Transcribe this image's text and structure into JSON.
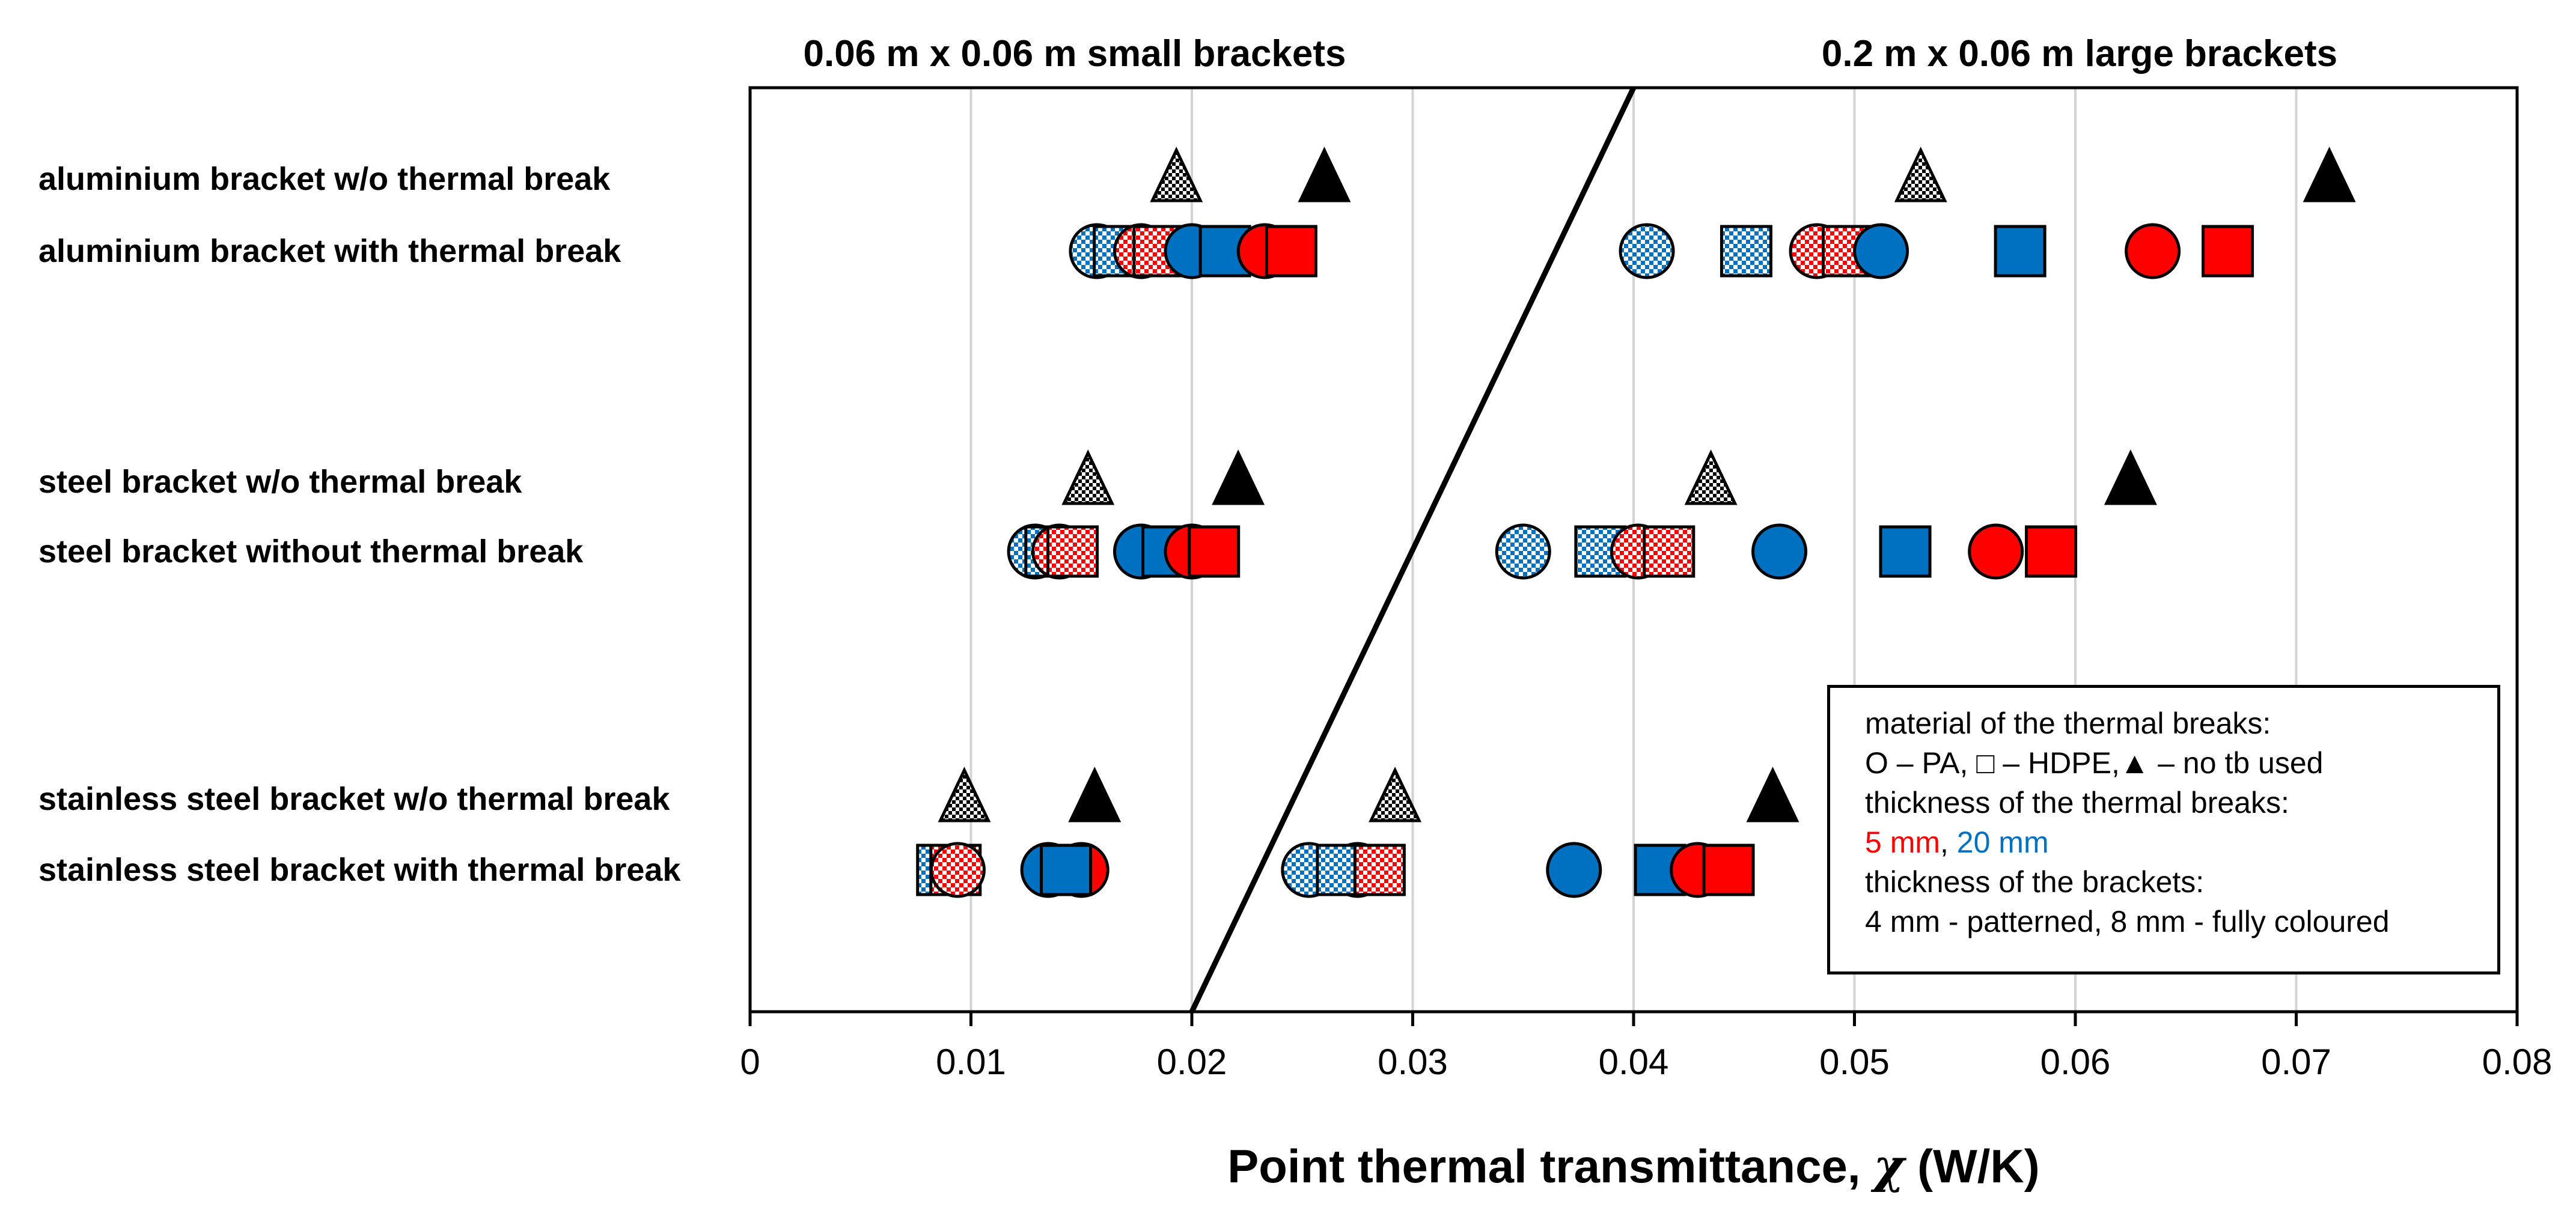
{
  "chart_data": {
    "type": "scatter",
    "title_left": "0.06 m x 0.06 m small brackets",
    "title_right": "0.2 m x 0.06 m large brackets",
    "xlabel": "Point thermal transmittance, χ (W/K)",
    "xlabel_main": "Point thermal transmittance, ",
    "xlabel_symbol": "χ",
    "xlabel_unit": " (W/K)",
    "xlim": [
      0,
      0.08
    ],
    "xticks": [
      0,
      0.01,
      0.02,
      0.03,
      0.04,
      0.05,
      0.06,
      0.07,
      0.08
    ],
    "xtick_labels": [
      "0",
      "0.01",
      "0.02",
      "0.03",
      "0.04",
      "0.05",
      "0.06",
      "0.07",
      "0.08"
    ],
    "grid": "vertical",
    "row_labels": [
      "aluminium bracket w/o thermal break",
      "aluminium bracket with thermal break",
      "steel bracket w/o thermal break",
      "steel bracket without thermal break",
      "stainless steel bracket w/o thermal break",
      "stainless steel bracket with thermal break"
    ],
    "divider_line": {
      "x_data": [
        0.02,
        0.04
      ],
      "from": "bottom",
      "to": "top"
    },
    "groups": [
      {
        "name": "aluminium",
        "no_break_row": 0,
        "break_row": 1,
        "no_break": [
          {
            "size": "small",
            "thickness": "4 mm",
            "value": 0.0193
          },
          {
            "size": "small",
            "thickness": "8 mm",
            "value": 0.026
          },
          {
            "size": "large",
            "thickness": "4 mm",
            "value": 0.053
          },
          {
            "size": "large",
            "thickness": "8 mm",
            "value": 0.0715
          }
        ],
        "with_break": [
          {
            "size": "small",
            "material": "PA",
            "tb": "20 mm",
            "thickness": "4 mm",
            "value": 0.0157
          },
          {
            "size": "small",
            "material": "HDPE",
            "tb": "20 mm",
            "thickness": "4 mm",
            "value": 0.0167
          },
          {
            "size": "small",
            "material": "PA",
            "tb": "5 mm",
            "thickness": "4 mm",
            "value": 0.0177
          },
          {
            "size": "small",
            "material": "HDPE",
            "tb": "5 mm",
            "thickness": "4 mm",
            "value": 0.0185
          },
          {
            "size": "small",
            "material": "PA",
            "tb": "20 mm",
            "thickness": "8 mm",
            "value": 0.02
          },
          {
            "size": "small",
            "material": "HDPE",
            "tb": "20 mm",
            "thickness": "8 mm",
            "value": 0.0215
          },
          {
            "size": "small",
            "material": "PA",
            "tb": "5 mm",
            "thickness": "8 mm",
            "value": 0.0233
          },
          {
            "size": "small",
            "material": "HDPE",
            "tb": "5 mm",
            "thickness": "8 mm",
            "value": 0.0245
          },
          {
            "size": "large",
            "material": "PA",
            "tb": "20 mm",
            "thickness": "4 mm",
            "value": 0.0406
          },
          {
            "size": "large",
            "material": "HDPE",
            "tb": "20 mm",
            "thickness": "4 mm",
            "value": 0.0451
          },
          {
            "size": "large",
            "material": "PA",
            "tb": "5 mm",
            "thickness": "4 mm",
            "value": 0.0483
          },
          {
            "size": "large",
            "material": "HDPE",
            "tb": "5 mm",
            "thickness": "4 mm",
            "value": 0.0497
          },
          {
            "size": "large",
            "material": "PA",
            "tb": "20 mm",
            "thickness": "8 mm",
            "value": 0.0512
          },
          {
            "size": "large",
            "material": "HDPE",
            "tb": "20 mm",
            "thickness": "8 mm",
            "value": 0.0575
          },
          {
            "size": "large",
            "material": "PA",
            "tb": "5 mm",
            "thickness": "8 mm",
            "value": 0.0635
          },
          {
            "size": "large",
            "material": "HDPE",
            "tb": "5 mm",
            "thickness": "8 mm",
            "value": 0.0669
          }
        ]
      },
      {
        "name": "steel",
        "no_break_row": 2,
        "break_row": 3,
        "no_break": [
          {
            "size": "small",
            "thickness": "4 mm",
            "value": 0.0153
          },
          {
            "size": "small",
            "thickness": "8 mm",
            "value": 0.0221
          },
          {
            "size": "large",
            "thickness": "4 mm",
            "value": 0.0435
          },
          {
            "size": "large",
            "thickness": "8 mm",
            "value": 0.0625
          }
        ],
        "with_break": [
          {
            "size": "small",
            "material": "PA",
            "tb": "20 mm",
            "thickness": "4 mm",
            "value": 0.0129
          },
          {
            "size": "small",
            "material": "HDPE",
            "tb": "20 mm",
            "thickness": "4 mm",
            "value": 0.0136
          },
          {
            "size": "small",
            "material": "PA",
            "tb": "5 mm",
            "thickness": "4 mm",
            "value": 0.014
          },
          {
            "size": "small",
            "material": "HDPE",
            "tb": "5 mm",
            "thickness": "4 mm",
            "value": 0.0146
          },
          {
            "size": "small",
            "material": "PA",
            "tb": "20 mm",
            "thickness": "8 mm",
            "value": 0.0177
          },
          {
            "size": "small",
            "material": "HDPE",
            "tb": "20 mm",
            "thickness": "8 mm",
            "value": 0.0189
          },
          {
            "size": "small",
            "material": "PA",
            "tb": "5 mm",
            "thickness": "8 mm",
            "value": 0.02
          },
          {
            "size": "small",
            "material": "HDPE",
            "tb": "5 mm",
            "thickness": "8 mm",
            "value": 0.021
          },
          {
            "size": "large",
            "material": "PA",
            "tb": "20 mm",
            "thickness": "4 mm",
            "value": 0.035
          },
          {
            "size": "large",
            "material": "HDPE",
            "tb": "20 mm",
            "thickness": "4 mm",
            "value": 0.0385
          },
          {
            "size": "large",
            "material": "PA",
            "tb": "5 mm",
            "thickness": "4 mm",
            "value": 0.0402
          },
          {
            "size": "large",
            "material": "HDPE",
            "tb": "5 mm",
            "thickness": "4 mm",
            "value": 0.0416
          },
          {
            "size": "large",
            "material": "PA",
            "tb": "20 mm",
            "thickness": "8 mm",
            "value": 0.0466
          },
          {
            "size": "large",
            "material": "HDPE",
            "tb": "20 mm",
            "thickness": "8 mm",
            "value": 0.0523
          },
          {
            "size": "large",
            "material": "PA",
            "tb": "5 mm",
            "thickness": "8 mm",
            "value": 0.0564
          },
          {
            "size": "large",
            "material": "HDPE",
            "tb": "5 mm",
            "thickness": "8 mm",
            "value": 0.0589
          }
        ]
      },
      {
        "name": "stainless steel",
        "no_break_row": 4,
        "break_row": 5,
        "no_break": [
          {
            "size": "small",
            "thickness": "4 mm",
            "value": 0.0097
          },
          {
            "size": "small",
            "thickness": "8 mm",
            "value": 0.0156
          },
          {
            "size": "large",
            "thickness": "4 mm",
            "value": 0.0292
          },
          {
            "size": "large",
            "thickness": "8 mm",
            "value": 0.0463
          }
        ],
        "with_break": [
          {
            "size": "small",
            "material": "HDPE",
            "tb": "20 mm",
            "thickness": "4 mm",
            "value": 0.0087
          },
          {
            "size": "small",
            "material": "HDPE",
            "tb": "5 mm",
            "thickness": "4 mm",
            "value": 0.0093
          },
          {
            "size": "small",
            "material": "PA",
            "tb": "5 mm",
            "thickness": "4 mm",
            "value": 0.0094
          },
          {
            "size": "small",
            "material": "PA",
            "tb": "20 mm",
            "thickness": "8 mm",
            "value": 0.0135
          },
          {
            "size": "small",
            "material": "PA",
            "tb": "5 mm",
            "thickness": "8 mm",
            "value": 0.015
          },
          {
            "size": "small",
            "material": "HDPE",
            "tb": "20 mm",
            "thickness": "8 mm",
            "value": 0.0143
          },
          {
            "size": "large",
            "material": "PA",
            "tb": "20 mm",
            "thickness": "4 mm",
            "value": 0.0253
          },
          {
            "size": "large",
            "material": "PA",
            "tb": "5 mm",
            "thickness": "4 mm",
            "value": 0.0275
          },
          {
            "size": "large",
            "material": "HDPE",
            "tb": "20 mm",
            "thickness": "4 mm",
            "value": 0.0268
          },
          {
            "size": "large",
            "material": "HDPE",
            "tb": "5 mm",
            "thickness": "4 mm",
            "value": 0.0285
          },
          {
            "size": "large",
            "material": "PA",
            "tb": "20 mm",
            "thickness": "8 mm",
            "value": 0.0373
          },
          {
            "size": "large",
            "material": "HDPE",
            "tb": "20 mm",
            "thickness": "8 mm",
            "value": 0.0412
          },
          {
            "size": "large",
            "material": "PA",
            "tb": "5 mm",
            "thickness": "8 mm",
            "value": 0.0429
          },
          {
            "size": "large",
            "material": "HDPE",
            "tb": "5 mm",
            "thickness": "8 mm",
            "value": 0.0443
          }
        ]
      }
    ]
  },
  "legend": {
    "line1": "material of the thermal breaks:",
    "line2": "O – PA, □ – HDPE,▲ – no tb used",
    "line3": "thickness of the thermal breaks:",
    "line4_red": "5 mm",
    "line4_sep": ", ",
    "line4_blue": "20 mm",
    "line5": "thickness of the brackets:",
    "line6": "4 mm - patterned, 8 mm - fully coloured"
  },
  "colors": {
    "red": "#ff0000",
    "blue": "#0070c0",
    "light_red": "#f4a0a0",
    "light_blue": "#9cc3e6",
    "grey": "#8c8c8c",
    "grid": "#d3d3d3"
  }
}
